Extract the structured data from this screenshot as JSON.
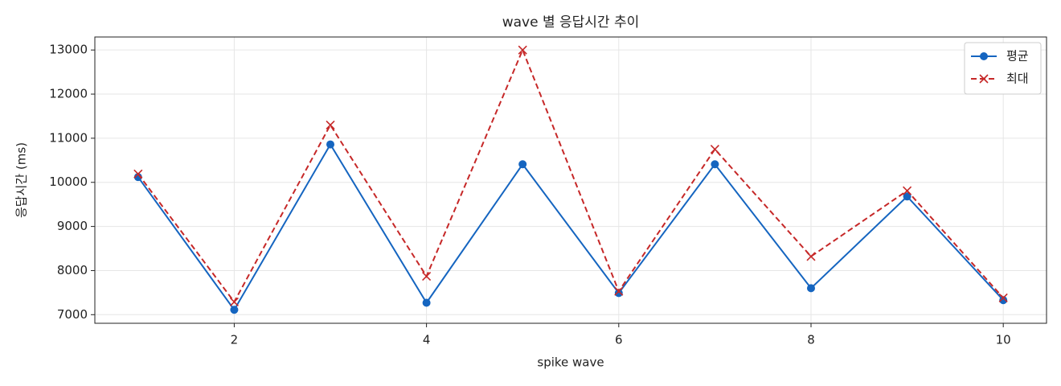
{
  "chart_data": {
    "type": "line",
    "title": "wave 별 응답시간 추이",
    "x_label": "spike wave",
    "y_label": "응답시간 (ms)",
    "x": [
      1,
      2,
      3,
      4,
      5,
      6,
      7,
      8,
      9,
      10
    ],
    "series": [
      {
        "name": "평균",
        "color": "#1565c0",
        "marker": "o",
        "linestyle": "solid",
        "values": [
          10120,
          7110,
          10860,
          7270,
          10410,
          7490,
          10410,
          7600,
          9680,
          7330
        ]
      },
      {
        "name": "최대",
        "color": "#c62828",
        "marker": "x",
        "linestyle": "dashed",
        "values": [
          10190,
          7290,
          11300,
          7870,
          13000,
          7530,
          10750,
          8320,
          9810,
          7380
        ]
      }
    ],
    "xlim": [
      0.55,
      10.45
    ],
    "ylim": [
      6805,
      13295
    ],
    "xticks": [
      2,
      4,
      6,
      8,
      10
    ],
    "yticks": [
      7000,
      8000,
      9000,
      10000,
      11000,
      12000,
      13000
    ],
    "grid": true,
    "legend": "upper right"
  }
}
